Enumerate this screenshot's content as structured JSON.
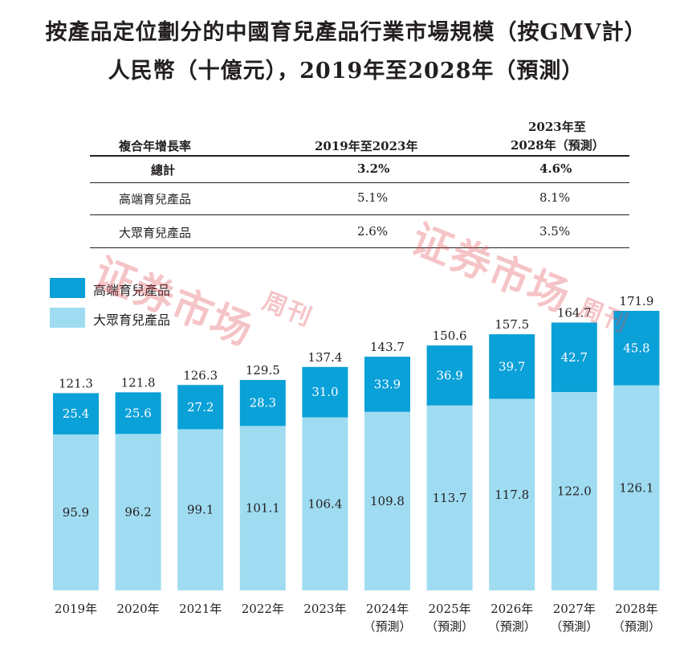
{
  "title_line1": "按產品定位劃分的中國育兒產品行業市場規模（按GMV計）",
  "title_line2": "人民幣（十億元），2019年至2028年（預測）",
  "cagr_table": {
    "header_label": "複合年增長率",
    "col1_header": "2019年至2023年",
    "col2_header_line1": "2023年至",
    "col2_header_line2": "2028年（預測）",
    "rows": [
      {
        "label": "總計",
        "col1": "3.2%",
        "col2": "4.6%"
      },
      {
        "label": "高端育兒產品",
        "col1": "5.1%",
        "col2": "8.1%"
      },
      {
        "label": "大眾育兒產品",
        "col1": "2.6%",
        "col2": "3.5%"
      }
    ]
  },
  "watermark": {
    "main": "证券市场",
    "sub": "周刊"
  },
  "colors": {
    "premium": "#0aa0d8",
    "mass": "#9fdcf2",
    "text": "#231f20",
    "watermark": "#e14650"
  },
  "chart_data": {
    "type": "bar",
    "stacked": true,
    "categories": [
      "2019年",
      "2020年",
      "2021年",
      "2022年",
      "2023年",
      "2024年",
      "2025年",
      "2026年",
      "2027年",
      "2028年"
    ],
    "category_sublabels": [
      "",
      "",
      "",
      "",
      "",
      "（預測）",
      "（預測）",
      "（預測）",
      "（預測）",
      "（預測）"
    ],
    "series": [
      {
        "name": "大眾育兒產品",
        "color": "#9fdcf2",
        "values": [
          95.9,
          96.2,
          99.1,
          101.1,
          106.4,
          109.8,
          113.7,
          117.8,
          122.0,
          126.1
        ]
      },
      {
        "name": "高端育兒產品",
        "color": "#0aa0d8",
        "values": [
          25.4,
          25.6,
          27.2,
          28.3,
          31.0,
          33.9,
          36.9,
          39.7,
          42.7,
          45.8
        ]
      }
    ],
    "totals": [
      121.3,
      121.8,
      126.3,
      129.5,
      137.4,
      143.7,
      150.6,
      157.5,
      164.7,
      171.9
    ],
    "value_labels_series0": [
      "95.9",
      "96.2",
      "99.1",
      "101.1",
      "106.4",
      "109.8",
      "113.7",
      "117.8",
      "122.0",
      "126.1"
    ],
    "value_labels_series1": [
      "25.4",
      "25.6",
      "27.2",
      "28.3",
      "31.0",
      "33.9",
      "36.9",
      "39.7",
      "42.7",
      "45.8"
    ],
    "total_labels": [
      "121.3",
      "121.8",
      "126.3",
      "129.5",
      "137.4",
      "143.7",
      "150.6",
      "157.5",
      "164.7",
      "171.9"
    ],
    "legend": [
      {
        "label": "高端育兒產品",
        "color": "#0aa0d8"
      },
      {
        "label": "大眾育兒產品",
        "color": "#9fdcf2"
      }
    ],
    "legend_position": "top-left",
    "ylim": [
      0,
      171.9
    ],
    "grid": false,
    "xlabel": "",
    "ylabel": ""
  }
}
